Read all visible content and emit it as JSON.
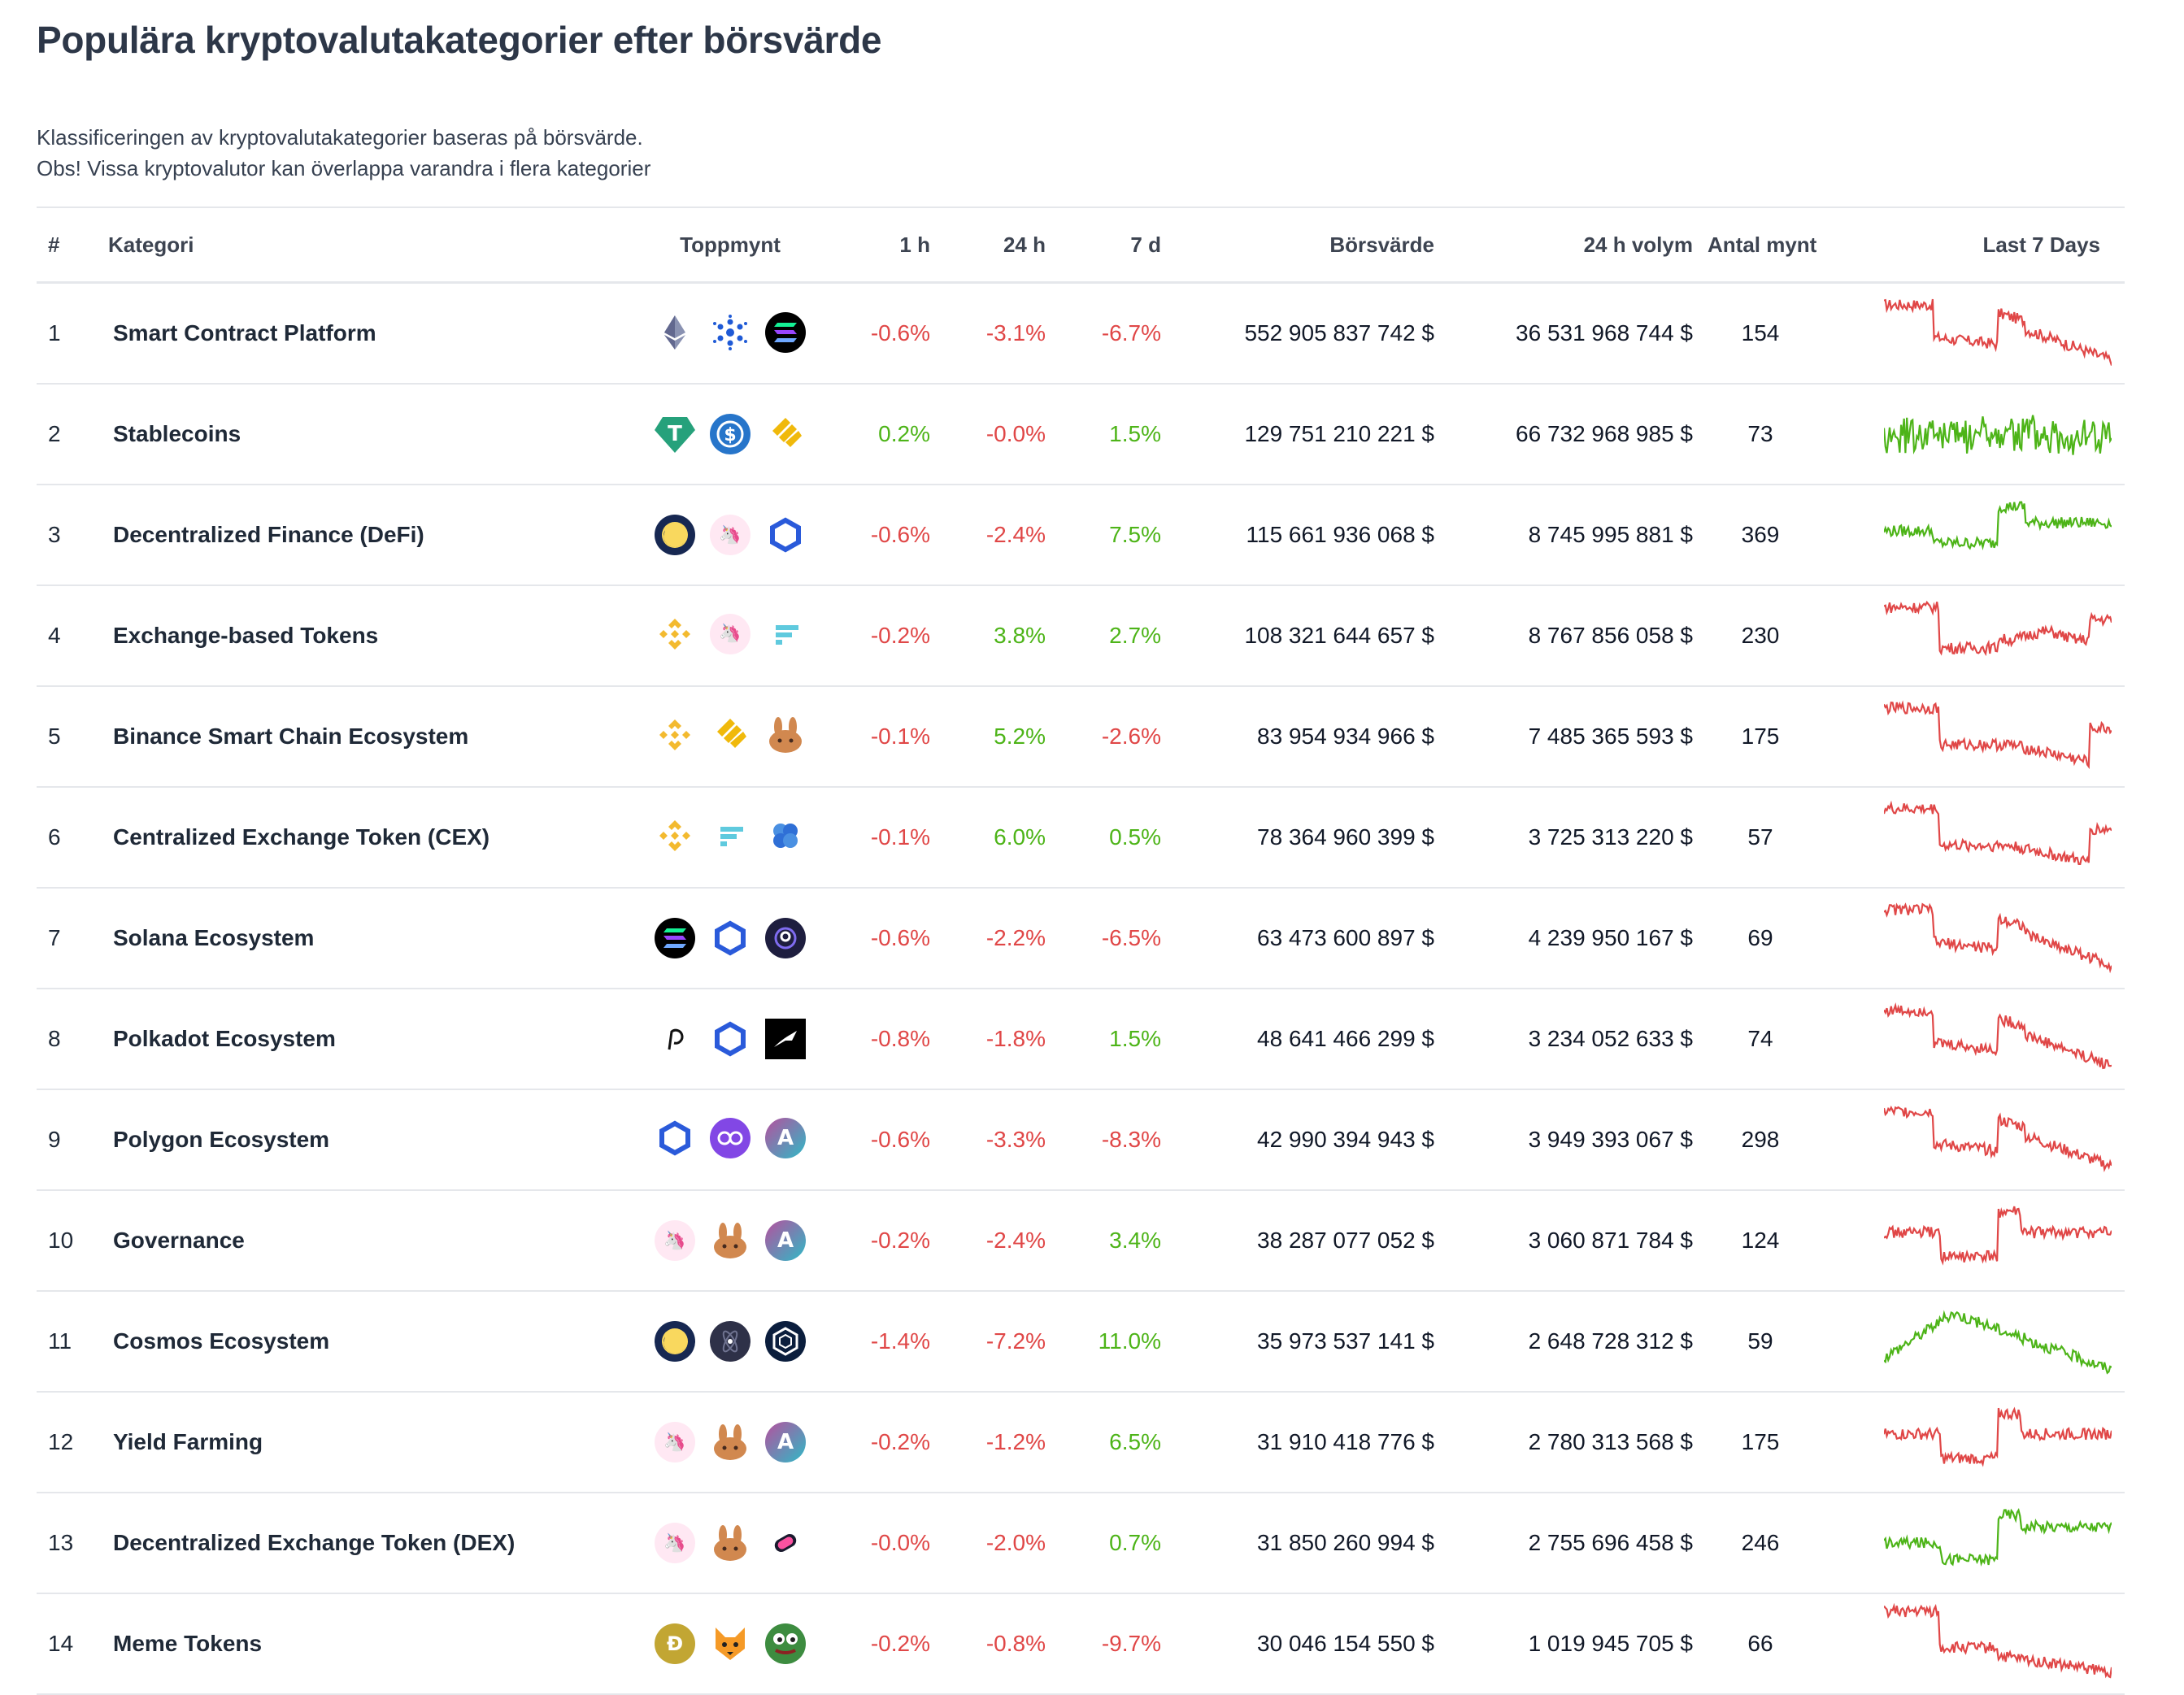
{
  "page": {
    "title": "Populära kryptovalutakategorier efter börsvärde",
    "description_line1": "Klassificeringen av kryptovalutakategorier baseras på börsvärde.",
    "description_line2": "Obs! Vissa kryptovalutor kan överlappa varandra i flera kategorier"
  },
  "table": {
    "headers": {
      "rank": "#",
      "category": "Kategori",
      "top_coins": "Toppmynt",
      "h1": "1 h",
      "h24": "24 h",
      "d7": "7 d",
      "market_cap": "Börsvärde",
      "volume": "24 h volym",
      "coin_count": "Antal mynt",
      "last7": "Last 7 Days"
    },
    "rows": [
      {
        "rank": "1",
        "name": "Smart Contract Platform",
        "icons": [
          "eth-icon",
          "cardano-icon",
          "solana-icon"
        ],
        "h1": "-0.6%",
        "h24": "-3.1%",
        "d7": "-6.7%",
        "cap": "552 905 837 742 $",
        "vol": "36 531 968 744 $",
        "count": "154",
        "trend": "down"
      },
      {
        "rank": "2",
        "name": "Stablecoins",
        "icons": [
          "tether-icon",
          "usdc-icon",
          "binance-usd-icon"
        ],
        "h1": "0.2%",
        "h24": "-0.0%",
        "d7": "1.5%",
        "cap": "129 751 210 221 $",
        "vol": "66 732 968 985 $",
        "count": "73",
        "trend": "flat-up"
      },
      {
        "rank": "3",
        "name": "Decentralized Finance (DeFi)",
        "icons": [
          "terra-icon",
          "uniswap-icon",
          "chainlink-icon"
        ],
        "h1": "-0.6%",
        "h24": "-2.4%",
        "d7": "7.5%",
        "cap": "115 661 936 068 $",
        "vol": "8 745 995 881 $",
        "count": "369",
        "trend": "up"
      },
      {
        "rank": "4",
        "name": "Exchange-based Tokens",
        "icons": [
          "bnb-icon",
          "uniswap-icon",
          "ftx-token-icon"
        ],
        "h1": "-0.2%",
        "h24": "3.8%",
        "d7": "2.7%",
        "cap": "108 321 644 657 $",
        "vol": "8 767 856 058 $",
        "count": "230",
        "trend": "down2"
      },
      {
        "rank": "5",
        "name": "Binance Smart Chain Ecosystem",
        "icons": [
          "bnb-icon",
          "binance-usd-icon",
          "pancakeswap-icon"
        ],
        "h1": "-0.1%",
        "h24": "5.2%",
        "d7": "-2.6%",
        "cap": "83 954 934 966 $",
        "vol": "7 485 365 593 $",
        "count": "175",
        "trend": "down3"
      },
      {
        "rank": "6",
        "name": "Centralized Exchange Token (CEX)",
        "icons": [
          "bnb-icon",
          "ftx-token-icon",
          "crypto-com-icon"
        ],
        "h1": "-0.1%",
        "h24": "6.0%",
        "d7": "0.5%",
        "cap": "78 364 960 399 $",
        "vol": "3 725 313 220 $",
        "count": "57",
        "trend": "down3"
      },
      {
        "rank": "7",
        "name": "Solana Ecosystem",
        "icons": [
          "solana-icon",
          "chainlink-icon",
          "serum-icon"
        ],
        "h1": "-0.6%",
        "h24": "-2.2%",
        "d7": "-6.5%",
        "cap": "63 473 600 897 $",
        "vol": "4 239 950 167 $",
        "count": "69",
        "trend": "down"
      },
      {
        "rank": "8",
        "name": "Polkadot Ecosystem",
        "icons": [
          "polkadot-icon",
          "chainlink-icon",
          "kusama-icon"
        ],
        "h1": "-0.8%",
        "h24": "-1.8%",
        "d7": "1.5%",
        "cap": "48 641 466 299 $",
        "vol": "3 234 052 633 $",
        "count": "74",
        "trend": "down"
      },
      {
        "rank": "9",
        "name": "Polygon Ecosystem",
        "icons": [
          "chainlink-icon",
          "polygon-icon",
          "aave-icon"
        ],
        "h1": "-0.6%",
        "h24": "-3.3%",
        "d7": "-8.3%",
        "cap": "42 990 394 943 $",
        "vol": "3 949 393 067 $",
        "count": "298",
        "trend": "down"
      },
      {
        "rank": "10",
        "name": "Governance",
        "icons": [
          "uniswap-icon",
          "pancakeswap-icon",
          "aave-icon"
        ],
        "h1": "-0.2%",
        "h24": "-2.4%",
        "d7": "3.4%",
        "cap": "38 287 077 052 $",
        "vol": "3 060 871 784 $",
        "count": "124",
        "trend": "mid"
      },
      {
        "rank": "11",
        "name": "Cosmos Ecosystem",
        "icons": [
          "terra-icon",
          "cosmos-icon",
          "cronos-icon"
        ],
        "h1": "-1.4%",
        "h24": "-7.2%",
        "d7": "11.0%",
        "cap": "35 973 537 141 $",
        "vol": "2 648 728 312 $",
        "count": "59",
        "trend": "up2"
      },
      {
        "rank": "12",
        "name": "Yield Farming",
        "icons": [
          "uniswap-icon",
          "pancakeswap-icon",
          "aave-icon"
        ],
        "h1": "-0.2%",
        "h24": "-1.2%",
        "d7": "6.5%",
        "cap": "31 910 418 776 $",
        "vol": "2 780 313 568 $",
        "count": "175",
        "trend": "mid"
      },
      {
        "rank": "13",
        "name": "Decentralized Exchange Token (DEX)",
        "icons": [
          "uniswap-icon",
          "pancakeswap-icon",
          "sushi-icon"
        ],
        "h1": "-0.0%",
        "h24": "-2.0%",
        "d7": "0.7%",
        "cap": "31 850 260 994 $",
        "vol": "2 755 696 458 $",
        "count": "246",
        "trend": "up3"
      },
      {
        "rank": "14",
        "name": "Meme Tokens",
        "icons": [
          "dogecoin-icon",
          "shiba-icon",
          "pepe-icon"
        ],
        "h1": "-0.2%",
        "h24": "-0.8%",
        "d7": "-9.7%",
        "cap": "30 046 154 550 $",
        "vol": "1 019 945 705 $",
        "count": "66",
        "trend": "down4"
      }
    ]
  },
  "colors": {
    "positive": "#4db418",
    "negative": "#e04747"
  }
}
